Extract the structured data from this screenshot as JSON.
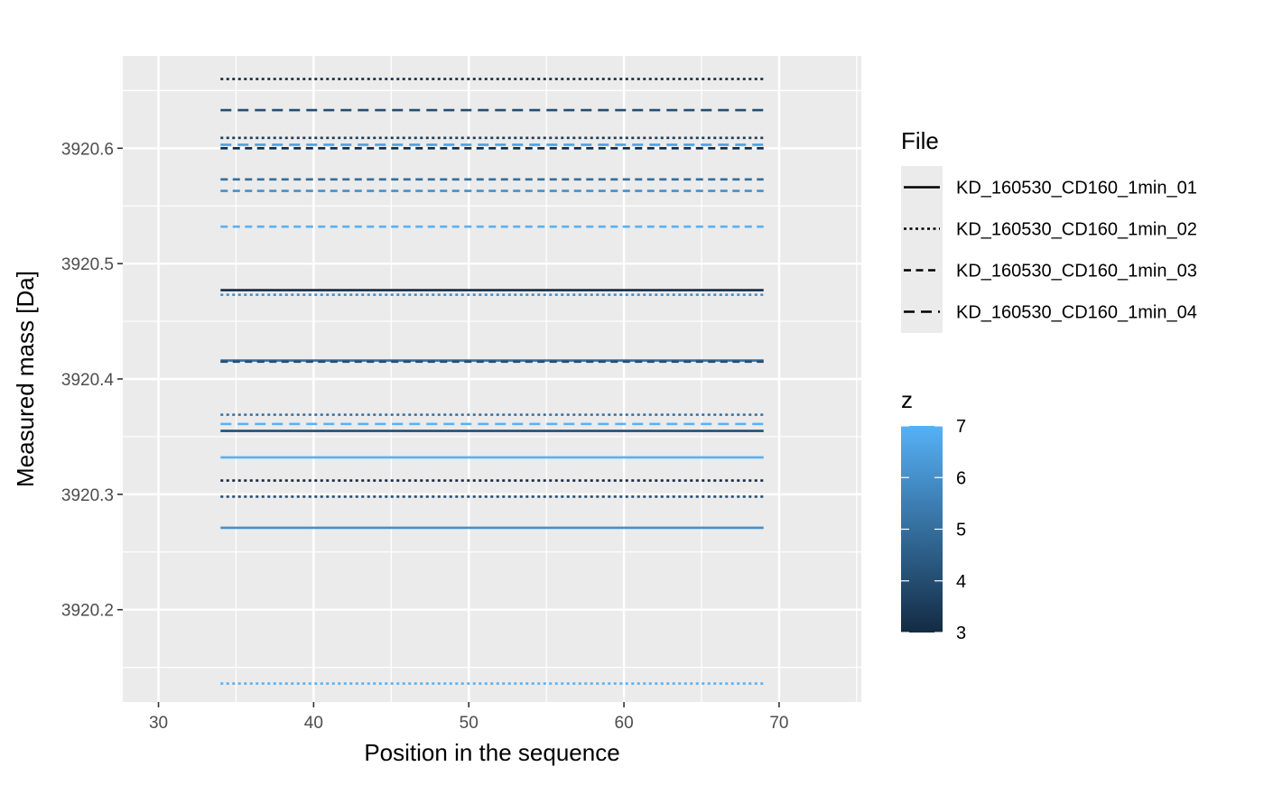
{
  "chart_data": {
    "type": "line",
    "title": "",
    "xlabel": "Position in the sequence",
    "ylabel": "Measured mass [Da]",
    "xlim": [
      27.7,
      75.3
    ],
    "ylim": [
      3920.12,
      3920.68
    ],
    "x_ticks": [
      30,
      40,
      50,
      60,
      70
    ],
    "x_tick_labels": [
      "30",
      "40",
      "50",
      "60",
      "70"
    ],
    "y_ticks": [
      3920.2,
      3920.3,
      3920.4,
      3920.5,
      3920.6
    ],
    "y_tick_labels": [
      "3920.2",
      "3920.3",
      "3920.4",
      "3920.5",
      "3920.6"
    ],
    "grid": true,
    "legend_placement": "right",
    "linetype_legend": {
      "title": "File",
      "entries": [
        {
          "label": "KD_160530_CD160_1min_01",
          "dash": "solid"
        },
        {
          "label": "KD_160530_CD160_1min_02",
          "dash": "dotted"
        },
        {
          "label": "KD_160530_CD160_1min_03",
          "dash": "dashed"
        },
        {
          "label": "KD_160530_CD160_1min_04",
          "dash": "longdash"
        }
      ]
    },
    "color_legend": {
      "title": "z",
      "min": 3,
      "max": 7,
      "ticks": [
        3,
        4,
        5,
        6,
        7
      ],
      "tick_labels": [
        "3",
        "4",
        "5",
        "6",
        "7"
      ],
      "low_color": "#132B43",
      "high_color": "#56B1F7"
    },
    "segments": [
      {
        "x_start": 34,
        "x_end": 69,
        "y": 3920.66,
        "file": "KD_160530_CD160_1min_02",
        "z": 3
      },
      {
        "x_start": 34,
        "x_end": 69,
        "y": 3920.633,
        "file": "KD_160530_CD160_1min_04",
        "z": 4
      },
      {
        "x_start": 34,
        "x_end": 69,
        "y": 3920.609,
        "file": "KD_160530_CD160_1min_02",
        "z": 3.5
      },
      {
        "x_start": 34,
        "x_end": 69,
        "y": 3920.603,
        "file": "KD_160530_CD160_1min_04",
        "z": 6.5
      },
      {
        "x_start": 34,
        "x_end": 69,
        "y": 3920.6,
        "file": "KD_160530_CD160_1min_03",
        "z": 3
      },
      {
        "x_start": 34,
        "x_end": 69,
        "y": 3920.573,
        "file": "KD_160530_CD160_1min_03",
        "z": 5
      },
      {
        "x_start": 34,
        "x_end": 69,
        "y": 3920.563,
        "file": "KD_160530_CD160_1min_03",
        "z": 6
      },
      {
        "x_start": 34,
        "x_end": 69,
        "y": 3920.532,
        "file": "KD_160530_CD160_1min_03",
        "z": 7
      },
      {
        "x_start": 34,
        "x_end": 69,
        "y": 3920.477,
        "file": "KD_160530_CD160_1min_01",
        "z": 3
      },
      {
        "x_start": 34,
        "x_end": 69,
        "y": 3920.473,
        "file": "KD_160530_CD160_1min_02",
        "z": 6
      },
      {
        "x_start": 34,
        "x_end": 69,
        "y": 3920.416,
        "file": "KD_160530_CD160_1min_01",
        "z": 5
      },
      {
        "x_start": 34,
        "x_end": 69,
        "y": 3920.415,
        "file": "KD_160530_CD160_1min_03",
        "z": 4
      },
      {
        "x_start": 34,
        "x_end": 69,
        "y": 3920.369,
        "file": "KD_160530_CD160_1min_02",
        "z": 5
      },
      {
        "x_start": 34,
        "x_end": 69,
        "y": 3920.361,
        "file": "KD_160530_CD160_1min_04",
        "z": 7
      },
      {
        "x_start": 34,
        "x_end": 69,
        "y": 3920.355,
        "file": "KD_160530_CD160_1min_01",
        "z": 4
      },
      {
        "x_start": 34,
        "x_end": 69,
        "y": 3920.332,
        "file": "KD_160530_CD160_1min_01",
        "z": 7
      },
      {
        "x_start": 34,
        "x_end": 69,
        "y": 3920.312,
        "file": "KD_160530_CD160_1min_02",
        "z": 3
      },
      {
        "x_start": 34,
        "x_end": 69,
        "y": 3920.298,
        "file": "KD_160530_CD160_1min_02",
        "z": 4
      },
      {
        "x_start": 34,
        "x_end": 69,
        "y": 3920.271,
        "file": "KD_160530_CD160_1min_01",
        "z": 6
      },
      {
        "x_start": 34,
        "x_end": 69,
        "y": 3920.136,
        "file": "KD_160530_CD160_1min_02",
        "z": 7
      }
    ]
  }
}
